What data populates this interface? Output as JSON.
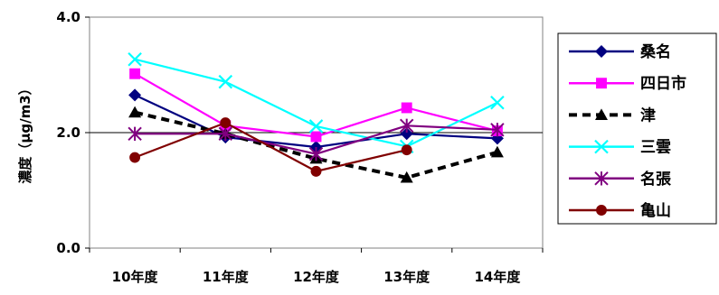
{
  "chart_data": {
    "type": "line",
    "title": "",
    "xlabel": "",
    "ylabel": "濃度（μg/m3）",
    "categories": [
      "10年度",
      "11年度",
      "12年度",
      "13年度",
      "14年度"
    ],
    "yticks": [
      "0.0",
      "2.0",
      "4.0"
    ],
    "ylim": [
      0,
      4
    ],
    "reference_line": 2.0,
    "legend_position": "right",
    "series": [
      {
        "name": "桑名",
        "color": "#000080",
        "marker": "diamond",
        "dash": "solid",
        "values": [
          2.65,
          1.92,
          1.75,
          1.98,
          1.9
        ]
      },
      {
        "name": "四日市",
        "color": "#FF00FF",
        "marker": "square",
        "dash": "solid",
        "values": [
          3.02,
          2.12,
          1.93,
          2.43,
          2.03
        ]
      },
      {
        "name": "津",
        "color": "#000000",
        "marker": "triangle",
        "dash": "dashed",
        "values": [
          2.35,
          1.98,
          1.55,
          1.22,
          1.66
        ]
      },
      {
        "name": "三雲",
        "color": "#00FFFF",
        "marker": "x",
        "dash": "solid",
        "values": [
          3.27,
          2.88,
          2.11,
          1.76,
          2.52
        ]
      },
      {
        "name": "名張",
        "color": "#800080",
        "marker": "star",
        "dash": "solid",
        "values": [
          1.98,
          1.98,
          1.63,
          2.12,
          2.05
        ]
      },
      {
        "name": "亀山",
        "color": "#800000",
        "marker": "circle",
        "dash": "solid",
        "values": [
          1.57,
          2.17,
          1.33,
          1.7,
          null
        ]
      }
    ]
  }
}
